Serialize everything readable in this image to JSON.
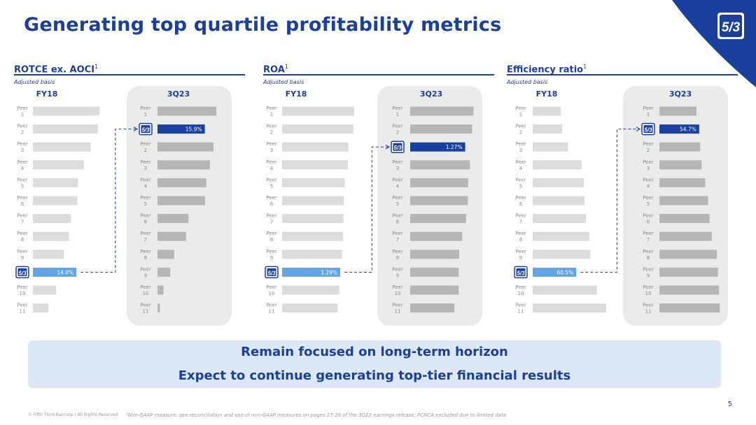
{
  "title": "Generating top quartile profitability metrics",
  "colors": {
    "brand_blue": "#1b3f9c",
    "light_blue": "#62a5e6",
    "peer_bar": "#dcdcdc",
    "peer_bar_3q": "#b6b6b6",
    "panel_bg": "#ebebeb"
  },
  "icons": {
    "corner_logo": "fifth-third-logo",
    "bar_marker": "fifth-third-logo"
  },
  "chart_data": [
    {
      "type": "bar",
      "title": "ROTCE ex. AOCI",
      "title_sup": "1",
      "subtitle": "Adjusted basis",
      "groups": [
        {
          "label": "FY18",
          "rows": [
            {
              "label": "Peer 1",
              "value": 21.4
            },
            {
              "label": "Peer 2",
              "value": 20.9
            },
            {
              "label": "Peer 3",
              "value": 18.6
            },
            {
              "label": "Peer 4",
              "value": 16.4
            },
            {
              "label": "Peer 5",
              "value": 14.5
            },
            {
              "label": "Peer 6",
              "value": 14.3
            },
            {
              "label": "Peer 7",
              "value": 12.2
            },
            {
              "label": "Peer 8",
              "value": 11.6
            },
            {
              "label": "Peer 9",
              "value": 10.0
            },
            {
              "label": "Fifth Third",
              "value": 14.0,
              "highlight": true,
              "value_label": "14.0%"
            },
            {
              "label": "Peer 10",
              "value": 7.5
            },
            {
              "label": "Peer 11",
              "value": 5.0
            }
          ]
        },
        {
          "label": "3Q23",
          "rows": [
            {
              "label": "Peer 1",
              "value": 19.8
            },
            {
              "label": "Fifth Third",
              "value": 15.9,
              "highlight": true,
              "value_label": "15.9%"
            },
            {
              "label": "Peer 2",
              "value": 18.8
            },
            {
              "label": "Peer 3",
              "value": 17.6
            },
            {
              "label": "Peer 4",
              "value": 16.4
            },
            {
              "label": "Peer 5",
              "value": 16.0
            },
            {
              "label": "Peer 6",
              "value": 10.4
            },
            {
              "label": "Peer 7",
              "value": 9.6
            },
            {
              "label": "Peer 8",
              "value": 5.6
            },
            {
              "label": "Peer 9",
              "value": 4.3
            },
            {
              "label": "Peer 10",
              "value": 2.0
            },
            {
              "label": "Peer 11",
              "value": 0.8
            }
          ]
        }
      ]
    },
    {
      "type": "bar",
      "title": "ROA",
      "title_sup": "1",
      "subtitle": "Adjusted basis",
      "groups": [
        {
          "label": "FY18",
          "rows": [
            {
              "label": "Peer 1",
              "value": 1.6
            },
            {
              "label": "Peer 2",
              "value": 1.58
            },
            {
              "label": "Peer 3",
              "value": 1.47
            },
            {
              "label": "Peer 4",
              "value": 1.46
            },
            {
              "label": "Peer 5",
              "value": 1.39
            },
            {
              "label": "Peer 6",
              "value": 1.37
            },
            {
              "label": "Peer 7",
              "value": 1.36
            },
            {
              "label": "Peer 8",
              "value": 1.35
            },
            {
              "label": "Peer 9",
              "value": 1.33
            },
            {
              "label": "Fifth Third",
              "value": 1.29,
              "highlight": true,
              "value_label": "1.29%"
            },
            {
              "label": "Peer 10",
              "value": 1.27
            },
            {
              "label": "Peer 11",
              "value": 1.23
            }
          ]
        },
        {
          "label": "3Q23",
          "rows": [
            {
              "label": "Peer 1",
              "value": 1.46
            },
            {
              "label": "Peer 2",
              "value": 1.43
            },
            {
              "label": "Fifth Third",
              "value": 1.27,
              "highlight": true,
              "value_label": "1.27%"
            },
            {
              "label": "Peer 3",
              "value": 1.38
            },
            {
              "label": "Peer 4",
              "value": 1.34
            },
            {
              "label": "Peer 5",
              "value": 1.33
            },
            {
              "label": "Peer 6",
              "value": 1.29
            },
            {
              "label": "Peer 7",
              "value": 1.2
            },
            {
              "label": "Peer 8",
              "value": 1.13
            },
            {
              "label": "Peer 9",
              "value": 1.12
            },
            {
              "label": "Peer 10",
              "value": 1.12
            },
            {
              "label": "Peer 11",
              "value": 1.02
            }
          ]
        }
      ]
    },
    {
      "type": "bar",
      "title": "Efficiency ratio",
      "title_sup": "1",
      "subtitle": "Adjusted basis",
      "groups": [
        {
          "label": "FY18",
          "rows": [
            {
              "label": "Peer 1",
              "value": 39.0
            },
            {
              "label": "Peer 2",
              "value": 41.0
            },
            {
              "label": "Peer 3",
              "value": 49.0
            },
            {
              "label": "Peer 4",
              "value": 68.0
            },
            {
              "label": "Peer 5",
              "value": 71.0
            },
            {
              "label": "Peer 6",
              "value": 72.0
            },
            {
              "label": "Peer 7",
              "value": 74.0
            },
            {
              "label": "Peer 8",
              "value": 78.5
            },
            {
              "label": "Peer 9",
              "value": 80.0
            },
            {
              "label": "Fifth Third",
              "value": 60.5,
              "highlight": true,
              "value_label": "60.5%"
            },
            {
              "label": "Peer 10",
              "value": 89.0
            },
            {
              "label": "Peer 11",
              "value": 102.0
            }
          ]
        },
        {
          "label": "3Q23",
          "rows": [
            {
              "label": "Peer 1",
              "value": 51.0
            },
            {
              "label": "Fifth Third",
              "value": 54.7,
              "highlight": true,
              "value_label": "54.7%"
            },
            {
              "label": "Peer 2",
              "value": 56.0
            },
            {
              "label": "Peer 3",
              "value": 58.0
            },
            {
              "label": "Peer 4",
              "value": 63.0
            },
            {
              "label": "Peer 5",
              "value": 67.0
            },
            {
              "label": "Peer 6",
              "value": 69.0
            },
            {
              "label": "Peer 7",
              "value": 72.0
            },
            {
              "label": "Peer 8",
              "value": 79.0
            },
            {
              "label": "Peer 9",
              "value": 80.5
            },
            {
              "label": "Peer 10",
              "value": 82.0
            },
            {
              "label": "Peer 11",
              "value": 83.0
            }
          ]
        }
      ]
    }
  ],
  "callout": {
    "line1": "Remain focused on long-term horizon",
    "line2": "Expect to continue generating top-tier financial results"
  },
  "page_number": "5",
  "copyright": "© Fifth Third Bancorp | All Rights Reserved",
  "footnote": "¹Non-GAAP measure: see reconciliation and use of non-GAAP measures on pages 27-29 of the 3Q23 earnings release; FCNCA excluded due to limited data"
}
